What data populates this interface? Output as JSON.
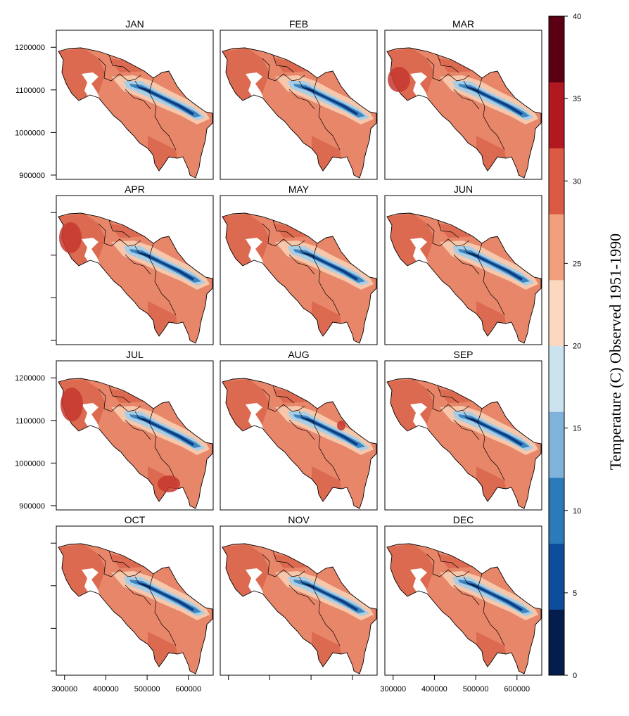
{
  "months": [
    "JAN",
    "FEB",
    "MAR",
    "APR",
    "MAY",
    "JUN",
    "JUL",
    "AUG",
    "SEP",
    "OCT",
    "NOV",
    "DEC"
  ],
  "y_axis": {
    "ticks": [
      1200000,
      1100000,
      1000000,
      900000
    ],
    "labels": [
      "1200000",
      "1100000",
      "1000000",
      "900000"
    ]
  },
  "x_axis": {
    "ticks": [
      300000,
      400000,
      500000,
      600000
    ],
    "labels": [
      "300000",
      "400000",
      "500000",
      "600000"
    ]
  },
  "colorbar": {
    "title": "Temperature (C) Observed 1951-1990",
    "ticks": [
      "0",
      "5",
      "10",
      "15",
      "20",
      "25",
      "30",
      "35",
      "40"
    ],
    "colors": [
      "#041d4c",
      "#0e4d9c",
      "#2b7bba",
      "#80b3da",
      "#cbe2ef",
      "#fbd8bf",
      "#f19f7c",
      "#db5a44",
      "#b1181f",
      "#5b0014"
    ]
  },
  "palette": {
    "warm": "#e8866a",
    "hot": "#dc6a50",
    "hotter": "#c5372f",
    "pale": "#f6c7ab",
    "cool": "#a9cde4",
    "cold": "#3d85c1",
    "coldest": "#0b3b80"
  },
  "chart_data": {
    "type": "heatmap",
    "description_free": true,
    "panels": [
      "JAN",
      "FEB",
      "MAR",
      "APR",
      "MAY",
      "JUN",
      "JUL",
      "AUG",
      "SEP",
      "OCT",
      "NOV",
      "DEC"
    ],
    "x_range": [
      280000,
      660000
    ],
    "y_range": [
      890000,
      1240000
    ],
    "color_scale": {
      "min": 0,
      "max": 40,
      "step": 4
    }
  }
}
